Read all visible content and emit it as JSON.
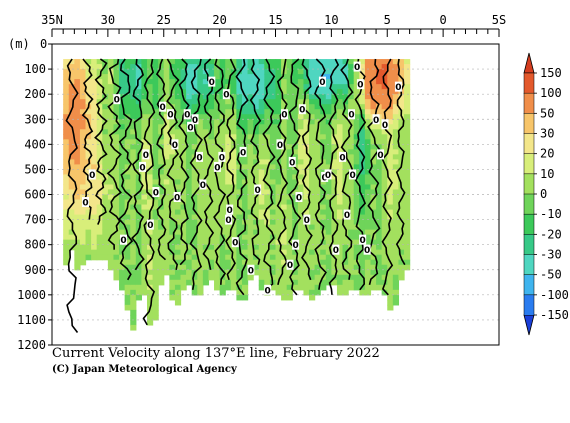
{
  "chart_data": {
    "type": "heatmap",
    "title": "Current Velocity along 137°E line, February 2022",
    "credit": "(C) Japan Meteorological Agency",
    "x_axis": {
      "label": "",
      "range": [
        35,
        -5
      ],
      "ticks": [
        {
          "value": 35,
          "label": "35N"
        },
        {
          "value": 30,
          "label": "30"
        },
        {
          "value": 25,
          "label": "25"
        },
        {
          "value": 20,
          "label": "20"
        },
        {
          "value": 15,
          "label": "15"
        },
        {
          "value": 10,
          "label": "10"
        },
        {
          "value": 5,
          "label": "5"
        },
        {
          "value": 0,
          "label": "0"
        },
        {
          "value": -5,
          "label": "5S"
        }
      ]
    },
    "y_axis": {
      "unit_label": "(m)",
      "range": [
        0,
        1200
      ],
      "ticks": [
        0,
        100,
        200,
        300,
        400,
        500,
        600,
        700,
        800,
        900,
        1000,
        1100,
        1200
      ],
      "inverted": true
    },
    "colorbar": {
      "levels": [
        -150,
        -100,
        -50,
        -30,
        -20,
        -10,
        0,
        10,
        20,
        30,
        50,
        100,
        150
      ],
      "colors": [
        "#1a3fd9",
        "#2a7cef",
        "#3fb4ee",
        "#4fd6c0",
        "#37c987",
        "#3cc95a",
        "#6fd45a",
        "#a3e05e",
        "#d8ee7a",
        "#f3e68a",
        "#f7c56a",
        "#f08e4a",
        "#e3592c",
        "#d43d1f"
      ],
      "labels": [
        "150",
        "100",
        "50",
        "30",
        "20",
        "10",
        "0",
        "-10",
        "-20",
        "-30",
        "-50",
        "-100",
        "-150"
      ]
    },
    "data_extent": {
      "lat_north": 34,
      "lat_south": 3,
      "max_depth": 1200
    },
    "bottom_profile": [
      {
        "lat": 34.0,
        "depth": 1200
      },
      {
        "lat": 33.6,
        "depth": 700
      },
      {
        "lat": 33.0,
        "depth": 900
      },
      {
        "lat": 31.5,
        "depth": 860
      },
      {
        "lat": 30.0,
        "depth": 870
      },
      {
        "lat": 28.5,
        "depth": 1000
      },
      {
        "lat": 27.8,
        "depth": 1150
      },
      {
        "lat": 27.0,
        "depth": 950
      },
      {
        "lat": 26.0,
        "depth": 1180
      },
      {
        "lat": 25.0,
        "depth": 880
      },
      {
        "lat": 24.0,
        "depth": 1060
      },
      {
        "lat": 23.0,
        "depth": 950
      },
      {
        "lat": 22.0,
        "depth": 1020
      },
      {
        "lat": 21.0,
        "depth": 930
      },
      {
        "lat": 20.0,
        "depth": 1000
      },
      {
        "lat": 19.0,
        "depth": 960
      },
      {
        "lat": 18.0,
        "depth": 1050
      },
      {
        "lat": 17.0,
        "depth": 900
      },
      {
        "lat": 16.0,
        "depth": 1000
      },
      {
        "lat": 15.0,
        "depth": 980
      },
      {
        "lat": 14.0,
        "depth": 1040
      },
      {
        "lat": 13.0,
        "depth": 960
      },
      {
        "lat": 12.0,
        "depth": 1020
      },
      {
        "lat": 11.0,
        "depth": 1000
      },
      {
        "lat": 10.0,
        "depth": 950
      },
      {
        "lat": 9.0,
        "depth": 1020
      },
      {
        "lat": 8.0,
        "depth": 960
      },
      {
        "lat": 7.0,
        "depth": 1000
      },
      {
        "lat": 6.0,
        "depth": 980
      },
      {
        "lat": 5.0,
        "depth": 1000
      },
      {
        "lat": 4.5,
        "depth": 1100
      },
      {
        "lat": 4.0,
        "depth": 980
      },
      {
        "lat": 3.5,
        "depth": 900
      },
      {
        "lat": 3.0,
        "depth": 880
      }
    ],
    "velocity_features": [
      {
        "lat": 32.6,
        "depth": 260,
        "dlat": 1.4,
        "ddepth": 230,
        "value": 45
      },
      {
        "lat": 31.9,
        "depth": 560,
        "dlat": 1.2,
        "ddepth": 220,
        "value": 22
      },
      {
        "lat": 33.4,
        "depth": 380,
        "dlat": 0.8,
        "ddepth": 330,
        "value": 35
      },
      {
        "lat": 29.8,
        "depth": 140,
        "dlat": 1.0,
        "ddepth": 120,
        "value": 15
      },
      {
        "lat": 30.5,
        "depth": 620,
        "dlat": 0.9,
        "ddepth": 200,
        "value": 12
      },
      {
        "lat": 27.7,
        "depth": 140,
        "dlat": 2.0,
        "ddepth": 150,
        "value": -30
      },
      {
        "lat": 26.6,
        "depth": 460,
        "dlat": 0.5,
        "ddepth": 260,
        "value": 14
      },
      {
        "lat": 24.4,
        "depth": 360,
        "dlat": 0.5,
        "ddepth": 300,
        "value": 16
      },
      {
        "lat": 22.3,
        "depth": 140,
        "dlat": 1.8,
        "ddepth": 140,
        "value": -35
      },
      {
        "lat": 21.2,
        "depth": 520,
        "dlat": 0.5,
        "ddepth": 260,
        "value": 12
      },
      {
        "lat": 19.2,
        "depth": 340,
        "dlat": 0.6,
        "ddepth": 320,
        "value": 18
      },
      {
        "lat": 17.0,
        "depth": 160,
        "dlat": 2.4,
        "ddepth": 160,
        "value": -40
      },
      {
        "lat": 16.2,
        "depth": 560,
        "dlat": 0.5,
        "ddepth": 280,
        "value": 15
      },
      {
        "lat": 13.6,
        "depth": 140,
        "dlat": 1.6,
        "ddepth": 140,
        "value": 12
      },
      {
        "lat": 12.2,
        "depth": 420,
        "dlat": 0.6,
        "ddepth": 340,
        "value": 18
      },
      {
        "lat": 11.2,
        "depth": 120,
        "dlat": 2.0,
        "ddepth": 130,
        "value": -50
      },
      {
        "lat": 8.6,
        "depth": 120,
        "dlat": 1.4,
        "ddepth": 110,
        "value": -30
      },
      {
        "lat": 9.2,
        "depth": 460,
        "dlat": 0.6,
        "ddepth": 300,
        "value": 14
      },
      {
        "lat": 6.1,
        "depth": 140,
        "dlat": 1.8,
        "ddepth": 150,
        "value": 75
      },
      {
        "lat": 5.0,
        "depth": 130,
        "dlat": 1.4,
        "ddepth": 110,
        "value": 55
      },
      {
        "lat": 7.2,
        "depth": 380,
        "dlat": 0.7,
        "ddepth": 280,
        "value": -25
      },
      {
        "lat": 4.5,
        "depth": 520,
        "dlat": 0.6,
        "ddepth": 260,
        "value": 16
      },
      {
        "lat": 26.0,
        "depth": 900,
        "dlat": 0.6,
        "ddepth": 200,
        "value": 12
      },
      {
        "lat": 14.5,
        "depth": 800,
        "dlat": 0.5,
        "ddepth": 220,
        "value": 12
      }
    ],
    "zero_contours": [
      {
        "lat": 33.2,
        "depth_top": 60,
        "depth_bottom": 1150,
        "wiggle": 0.35
      },
      {
        "lat": 31.8,
        "depth_top": 60,
        "depth_bottom": 700,
        "wiggle": 0.3
      },
      {
        "lat": 30.6,
        "depth_top": 60,
        "depth_bottom": 720,
        "wiggle": 0.35
      },
      {
        "lat": 29.4,
        "depth_top": 60,
        "depth_bottom": 820,
        "wiggle": 0.4
      },
      {
        "lat": 28.4,
        "depth_top": 60,
        "depth_bottom": 940,
        "wiggle": 0.4
      },
      {
        "lat": 27.3,
        "depth_top": 60,
        "depth_bottom": 900,
        "wiggle": 0.35
      },
      {
        "lat": 26.3,
        "depth_top": 60,
        "depth_bottom": 1120,
        "wiggle": 0.35
      },
      {
        "lat": 25.2,
        "depth_top": 60,
        "depth_bottom": 860,
        "wiggle": 0.3
      },
      {
        "lat": 24.2,
        "depth_top": 60,
        "depth_bottom": 900,
        "wiggle": 0.35
      },
      {
        "lat": 23.2,
        "depth_top": 60,
        "depth_bottom": 880,
        "wiggle": 0.3
      },
      {
        "lat": 22.1,
        "depth_top": 60,
        "depth_bottom": 980,
        "wiggle": 0.35
      },
      {
        "lat": 21.0,
        "depth_top": 60,
        "depth_bottom": 900,
        "wiggle": 0.3
      },
      {
        "lat": 20.0,
        "depth_top": 60,
        "depth_bottom": 960,
        "wiggle": 0.35
      },
      {
        "lat": 19.0,
        "depth_top": 60,
        "depth_bottom": 940,
        "wiggle": 0.3
      },
      {
        "lat": 18.0,
        "depth_top": 60,
        "depth_bottom": 1000,
        "wiggle": 0.35
      },
      {
        "lat": 16.8,
        "depth_top": 60,
        "depth_bottom": 880,
        "wiggle": 0.3
      },
      {
        "lat": 15.6,
        "depth_top": 60,
        "depth_bottom": 980,
        "wiggle": 0.35
      },
      {
        "lat": 14.4,
        "depth_top": 60,
        "depth_bottom": 960,
        "wiggle": 0.3
      },
      {
        "lat": 13.3,
        "depth_top": 60,
        "depth_bottom": 1000,
        "wiggle": 0.35
      },
      {
        "lat": 12.2,
        "depth_top": 60,
        "depth_bottom": 940,
        "wiggle": 0.3
      },
      {
        "lat": 11.0,
        "depth_top": 60,
        "depth_bottom": 980,
        "wiggle": 0.35
      },
      {
        "lat": 9.8,
        "depth_top": 60,
        "depth_bottom": 1000,
        "wiggle": 0.3
      },
      {
        "lat": 8.6,
        "depth_top": 60,
        "depth_bottom": 940,
        "wiggle": 0.35
      },
      {
        "lat": 7.4,
        "depth_top": 60,
        "depth_bottom": 980,
        "wiggle": 0.3
      },
      {
        "lat": 6.2,
        "depth_top": 60,
        "depth_bottom": 960,
        "wiggle": 0.35
      },
      {
        "lat": 5.0,
        "depth_top": 60,
        "depth_bottom": 1000,
        "wiggle": 0.3
      },
      {
        "lat": 3.8,
        "depth_top": 60,
        "depth_bottom": 880,
        "wiggle": 0.25
      }
    ],
    "contour_labels": [
      {
        "lat": 31.4,
        "depth": 520,
        "text": "0"
      },
      {
        "lat": 32.0,
        "depth": 630,
        "text": "0"
      },
      {
        "lat": 29.2,
        "depth": 220,
        "text": "0"
      },
      {
        "lat": 28.6,
        "depth": 780,
        "text": "0"
      },
      {
        "lat": 26.9,
        "depth": 490,
        "text": "0"
      },
      {
        "lat": 26.6,
        "depth": 440,
        "text": "0"
      },
      {
        "lat": 26.2,
        "depth": 720,
        "text": "0"
      },
      {
        "lat": 25.7,
        "depth": 590,
        "text": "0"
      },
      {
        "lat": 25.1,
        "depth": 250,
        "text": "0"
      },
      {
        "lat": 24.4,
        "depth": 280,
        "text": "0"
      },
      {
        "lat": 24.0,
        "depth": 400,
        "text": "0"
      },
      {
        "lat": 23.8,
        "depth": 610,
        "text": "0"
      },
      {
        "lat": 22.9,
        "depth": 280,
        "text": "0"
      },
      {
        "lat": 22.6,
        "depth": 330,
        "text": "0"
      },
      {
        "lat": 22.2,
        "depth": 300,
        "text": "0"
      },
      {
        "lat": 21.8,
        "depth": 450,
        "text": "0"
      },
      {
        "lat": 21.5,
        "depth": 560,
        "text": "0"
      },
      {
        "lat": 20.7,
        "depth": 150,
        "text": "0"
      },
      {
        "lat": 20.2,
        "depth": 490,
        "text": "0"
      },
      {
        "lat": 19.8,
        "depth": 450,
        "text": "0"
      },
      {
        "lat": 19.4,
        "depth": 200,
        "text": "0"
      },
      {
        "lat": 19.2,
        "depth": 700,
        "text": "0"
      },
      {
        "lat": 19.1,
        "depth": 660,
        "text": "0"
      },
      {
        "lat": 18.6,
        "depth": 790,
        "text": "0"
      },
      {
        "lat": 17.9,
        "depth": 430,
        "text": "0"
      },
      {
        "lat": 17.2,
        "depth": 900,
        "text": "0"
      },
      {
        "lat": 16.6,
        "depth": 580,
        "text": "0"
      },
      {
        "lat": 15.7,
        "depth": 980,
        "text": "0"
      },
      {
        "lat": 14.6,
        "depth": 400,
        "text": "0"
      },
      {
        "lat": 14.2,
        "depth": 280,
        "text": "0"
      },
      {
        "lat": 13.7,
        "depth": 880,
        "text": "0"
      },
      {
        "lat": 13.5,
        "depth": 470,
        "text": "0"
      },
      {
        "lat": 13.2,
        "depth": 800,
        "text": "0"
      },
      {
        "lat": 12.9,
        "depth": 610,
        "text": "0"
      },
      {
        "lat": 12.6,
        "depth": 260,
        "text": "0"
      },
      {
        "lat": 12.2,
        "depth": 700,
        "text": "0"
      },
      {
        "lat": 10.8,
        "depth": 150,
        "text": "0"
      },
      {
        "lat": 10.6,
        "depth": 530,
        "text": "0"
      },
      {
        "lat": 10.3,
        "depth": 520,
        "text": "0"
      },
      {
        "lat": 9.6,
        "depth": 820,
        "text": "0"
      },
      {
        "lat": 9.0,
        "depth": 450,
        "text": "0"
      },
      {
        "lat": 8.6,
        "depth": 680,
        "text": "0"
      },
      {
        "lat": 8.2,
        "depth": 280,
        "text": "0"
      },
      {
        "lat": 8.1,
        "depth": 520,
        "text": "0"
      },
      {
        "lat": 7.7,
        "depth": 90,
        "text": "0"
      },
      {
        "lat": 7.4,
        "depth": 160,
        "text": "0"
      },
      {
        "lat": 7.2,
        "depth": 780,
        "text": "0"
      },
      {
        "lat": 6.8,
        "depth": 820,
        "text": "0"
      },
      {
        "lat": 6.0,
        "depth": 300,
        "text": "0"
      },
      {
        "lat": 5.6,
        "depth": 440,
        "text": "0"
      },
      {
        "lat": 5.2,
        "depth": 320,
        "text": "0"
      },
      {
        "lat": 4.0,
        "depth": 170,
        "text": "0"
      }
    ]
  }
}
